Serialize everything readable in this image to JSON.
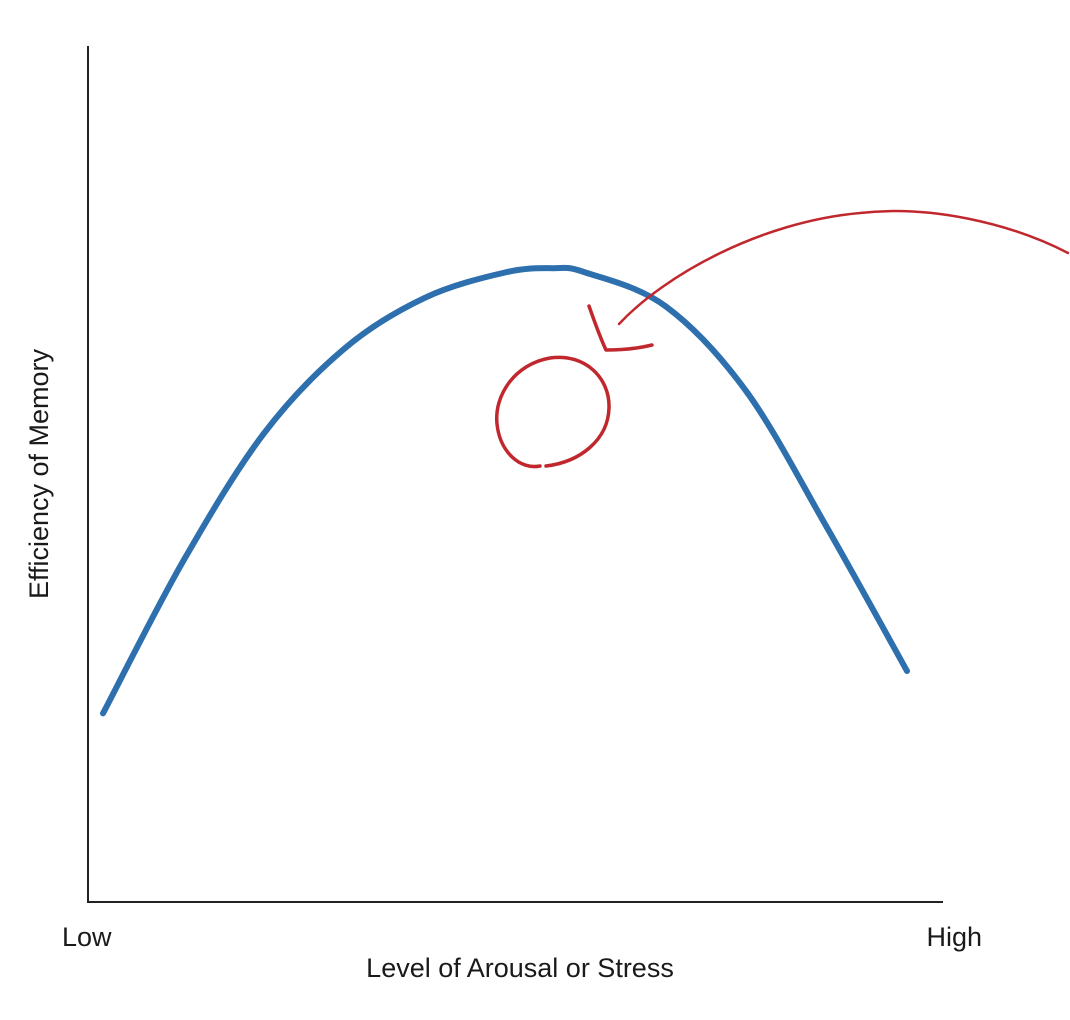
{
  "chart_data": {
    "type": "line",
    "title": "",
    "xlabel": "Level of Arousal or Stress",
    "ylabel": "Efficiency of Memory",
    "x_tick_labels": [
      "Low",
      "High"
    ],
    "xlim": [
      0,
      1
    ],
    "ylim": [
      0,
      1
    ],
    "grid": false,
    "legend": "none",
    "series": [
      {
        "color": "#2e6fae",
        "x": [
          0.0,
          0.1,
          0.2,
          0.3,
          0.4,
          0.5,
          0.56,
          0.6,
          0.7,
          0.8,
          0.9,
          1.0
        ],
        "y": [
          0.22,
          0.4,
          0.55,
          0.65,
          0.71,
          0.74,
          0.745,
          0.74,
          0.7,
          0.6,
          0.44,
          0.27
        ]
      }
    ],
    "annotations": [
      {
        "kind": "hand-drawn-circle",
        "color": "#c0282d",
        "target": "peak of the curve"
      },
      {
        "kind": "hand-drawn-arrow",
        "color": "#c0282d",
        "target": "peak of the curve",
        "from": "right edge"
      }
    ]
  }
}
